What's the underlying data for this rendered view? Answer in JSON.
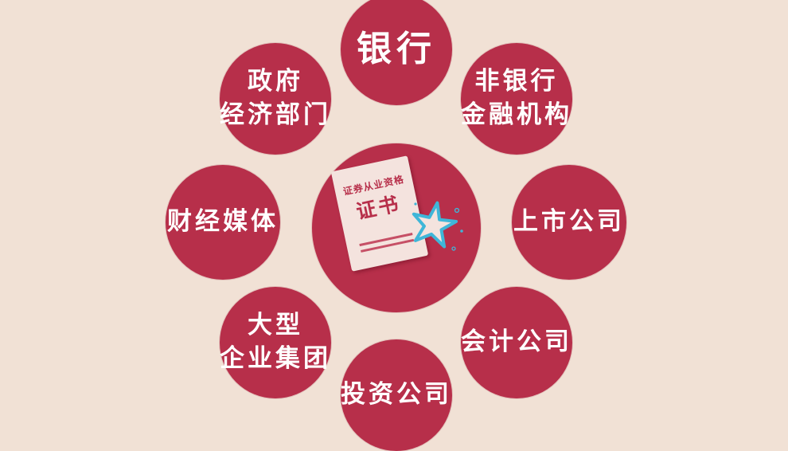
{
  "center": {
    "cert_title": "证券从业资格",
    "cert_big": "证书"
  },
  "nodes": {
    "bank": "银行",
    "gov": "政府\n经济部门",
    "nonbank": "非银行\n金融机构",
    "media": "财经媒体",
    "listed": "上市公司",
    "group": "大型\n企业集团",
    "account": "会计公司",
    "invest": "投资公司"
  },
  "colors": {
    "background": "#f1e1d5",
    "circle": "#b72f4a",
    "text": "#ffffff",
    "certificate": "#f4e3de",
    "star": "#3fb6d8"
  },
  "icons": {
    "certificate": "certificate-icon",
    "star": "star-icon"
  }
}
